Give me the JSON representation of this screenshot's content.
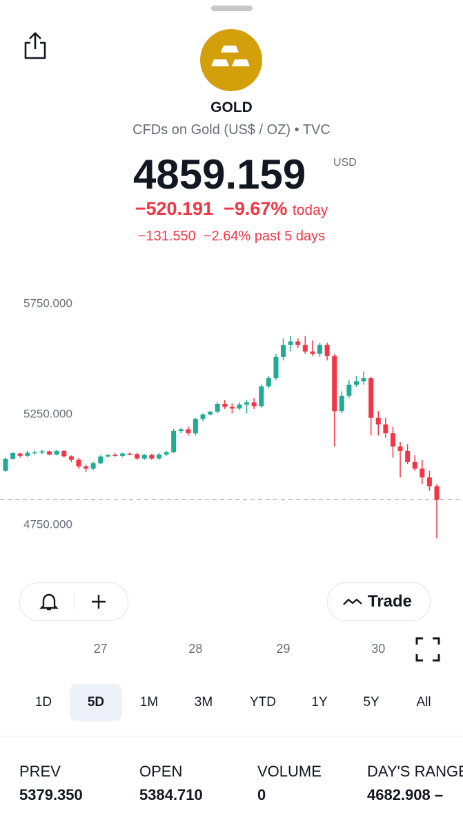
{
  "header": {
    "title": "GOLD",
    "subtitle": "CFDs on Gold (US$ / OZ) • TVC",
    "price": "4859.159",
    "currency": "USD",
    "change_today": "−520.191",
    "change_today_pct": "−9.67%",
    "today_label": "today",
    "change_5d": "−131.550",
    "change_5d_pct": "−2.64%",
    "period_label": "past 5 days"
  },
  "chart_data": {
    "type": "candlestick",
    "up_color": "#22ab94",
    "down_color": "#f23645",
    "ylim": [
      4620,
      5870
    ],
    "yticks": [
      {
        "value": 5750,
        "label": "5750.000"
      },
      {
        "value": 5250,
        "label": "5250.000"
      },
      {
        "value": 4750,
        "label": "4750.000"
      }
    ],
    "categories": [
      null,
      null,
      null,
      null,
      null,
      null,
      null,
      null,
      null,
      null,
      null,
      null,
      null,
      "27",
      null,
      null,
      null,
      null,
      null,
      null,
      null,
      null,
      null,
      null,
      null,
      null,
      "28",
      null,
      null,
      null,
      null,
      null,
      null,
      null,
      null,
      null,
      null,
      null,
      "29",
      null,
      null,
      null,
      null,
      null,
      null,
      null,
      null,
      null,
      null,
      null,
      null,
      "30",
      null,
      null,
      null,
      null,
      null,
      null,
      null,
      null
    ],
    "candles": [
      [
        4990,
        5050,
        4985,
        5045
      ],
      [
        5045,
        5075,
        5040,
        5070
      ],
      [
        5068,
        5072,
        5050,
        5058
      ],
      [
        5058,
        5080,
        5052,
        5072
      ],
      [
        5070,
        5082,
        5062,
        5074
      ],
      [
        5074,
        5085,
        5066,
        5078
      ],
      [
        5078,
        5082,
        5060,
        5064
      ],
      [
        5064,
        5085,
        5060,
        5080
      ],
      [
        5080,
        5084,
        5050,
        5056
      ],
      [
        5056,
        5060,
        5030,
        5040
      ],
      [
        5040,
        5048,
        5000,
        5010
      ],
      [
        5010,
        5018,
        4985,
        5000
      ],
      [
        5000,
        5030,
        4995,
        5025
      ],
      [
        5025,
        5060,
        5020,
        5055
      ],
      [
        5055,
        5066,
        5050,
        5062
      ],
      [
        5062,
        5070,
        5055,
        5058
      ],
      [
        5058,
        5072,
        5054,
        5068
      ],
      [
        5068,
        5074,
        5060,
        5066
      ],
      [
        5066,
        5072,
        5040,
        5046
      ],
      [
        5046,
        5066,
        5040,
        5062
      ],
      [
        5062,
        5068,
        5040,
        5046
      ],
      [
        5046,
        5070,
        5040,
        5064
      ],
      [
        5064,
        5080,
        5058,
        5075
      ],
      [
        5075,
        5180,
        5070,
        5170
      ],
      [
        5170,
        5185,
        5160,
        5178
      ],
      [
        5178,
        5190,
        5150,
        5160
      ],
      [
        5160,
        5230,
        5150,
        5225
      ],
      [
        5225,
        5250,
        5215,
        5245
      ],
      [
        5245,
        5262,
        5240,
        5258
      ],
      [
        5258,
        5300,
        5250,
        5292
      ],
      [
        5292,
        5310,
        5270,
        5280
      ],
      [
        5280,
        5295,
        5250,
        5272
      ],
      [
        5272,
        5300,
        5265,
        5290
      ],
      [
        5290,
        5310,
        5250,
        5300
      ],
      [
        5300,
        5320,
        5270,
        5282
      ],
      [
        5282,
        5380,
        5275,
        5372
      ],
      [
        5372,
        5420,
        5365,
        5410
      ],
      [
        5410,
        5520,
        5400,
        5505
      ],
      [
        5505,
        5590,
        5490,
        5560
      ],
      [
        5560,
        5600,
        5530,
        5575
      ],
      [
        5575,
        5590,
        5545,
        5560
      ],
      [
        5560,
        5600,
        5520,
        5530
      ],
      [
        5530,
        5580,
        5510,
        5520
      ],
      [
        5520,
        5570,
        5505,
        5560
      ],
      [
        5560,
        5570,
        5490,
        5510
      ],
      [
        5510,
        5520,
        5100,
        5260
      ],
      [
        5260,
        5350,
        5250,
        5330
      ],
      [
        5330,
        5400,
        5320,
        5380
      ],
      [
        5380,
        5420,
        5370,
        5395
      ],
      [
        5395,
        5440,
        5380,
        5410
      ],
      [
        5410,
        5415,
        5150,
        5230
      ],
      [
        5230,
        5260,
        5150,
        5200
      ],
      [
        5200,
        5230,
        5140,
        5160
      ],
      [
        5160,
        5190,
        5050,
        5100
      ],
      [
        5100,
        5120,
        4960,
        5080
      ],
      [
        5080,
        5110,
        5020,
        5030
      ],
      [
        5030,
        5060,
        4990,
        5000
      ],
      [
        5000,
        5040,
        4930,
        4960
      ],
      [
        4960,
        4990,
        4900,
        4920
      ],
      [
        4920,
        4930,
        4685,
        4859.159
      ]
    ]
  },
  "buttons": {
    "trade": "Trade"
  },
  "ranges": {
    "items": [
      "1D",
      "5D",
      "1M",
      "3M",
      "YTD",
      "1Y",
      "5Y",
      "All"
    ],
    "selected": 1
  },
  "stats": [
    {
      "label": "PREV",
      "value": "5379.350"
    },
    {
      "label": "OPEN",
      "value": "5384.710"
    },
    {
      "label": "VOLUME",
      "value": "0"
    },
    {
      "label": "DAY'S RANGE",
      "value": "4682.908 –"
    }
  ]
}
